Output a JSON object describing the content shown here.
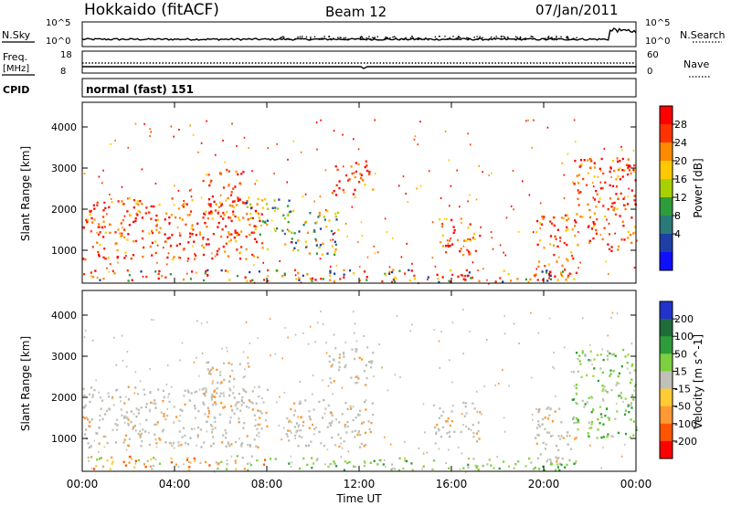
{
  "header": {
    "title": "Hokkaido (fitACF)",
    "beam": "Beam 12",
    "date": "07/Jan/2011"
  },
  "top_panels": {
    "nsky_label": "N.Sky",
    "nsearch_label": "N.Search",
    "freq_label_1": "Freq.",
    "freq_label_2": "[MHz]",
    "nave_label": "Nave",
    "cpid_label": "CPID",
    "cpid_text": "normal (fast) 151",
    "noise_left_ticks": [
      "10^5",
      "10^0"
    ],
    "noise_right_ticks": [
      "10^5",
      "10^0"
    ],
    "freq_ticks": [
      "18",
      "8"
    ],
    "nave_ticks": [
      "60",
      "0"
    ]
  },
  "chart_data": [
    {
      "type": "heatmap",
      "name": "power",
      "ylabel": "Slant Range [km]",
      "ylim": [
        200,
        4600
      ],
      "yticks": [
        1000,
        2000,
        3000,
        4000
      ],
      "colorbar": {
        "label": "Power [dB]",
        "ticks": [
          "28",
          "24",
          "20",
          "16",
          "12",
          "8",
          "4"
        ],
        "colors": [
          "#ff0000",
          "#ff3300",
          "#ff8a00",
          "#ffc800",
          "#a8d000",
          "#2e9c3a",
          "#2a7a7a",
          "#1f3fa6",
          "#1010ff"
        ]
      },
      "blobs": [
        {
          "t0": 0.0,
          "t1": 8.0,
          "r0": 800,
          "r1": 2300,
          "level": "high"
        },
        {
          "t0": 5.2,
          "t1": 7.2,
          "r0": 1800,
          "r1": 3000,
          "level": "high"
        },
        {
          "t0": 7.0,
          "t1": 9.0,
          "r0": 1400,
          "r1": 2300,
          "level": "mid"
        },
        {
          "t0": 9.0,
          "t1": 11.2,
          "r0": 900,
          "r1": 2000,
          "level": "mid"
        },
        {
          "t0": 10.8,
          "t1": 12.6,
          "r0": 2300,
          "r1": 3200,
          "level": "high"
        },
        {
          "t0": 15.4,
          "t1": 17.2,
          "r0": 900,
          "r1": 1800,
          "level": "high"
        },
        {
          "t0": 19.6,
          "t1": 21.4,
          "r0": 300,
          "r1": 1900,
          "level": "high"
        },
        {
          "t0": 21.2,
          "t1": 24.0,
          "r0": 1000,
          "r1": 3300,
          "level": "high"
        },
        {
          "t0": 0.0,
          "t1": 21.0,
          "r0": 250,
          "r1": 550,
          "level": "mixed"
        }
      ]
    },
    {
      "type": "heatmap",
      "name": "velocity",
      "ylabel": "Slant Range [km]",
      "xlabel": "Time UT",
      "ylim": [
        200,
        4600
      ],
      "yticks": [
        1000,
        2000,
        3000,
        4000
      ],
      "xticks": [
        "00:00",
        "04:00",
        "08:00",
        "12:00",
        "16:00",
        "20:00",
        "00:00"
      ],
      "xlim": [
        0,
        24
      ],
      "colorbar": {
        "label": "Velocity [m s^-1]",
        "ticks": [
          "200",
          "100",
          "50",
          "15",
          "-15",
          "-50",
          "-100",
          "-200"
        ],
        "colors": [
          "#2233cc",
          "#1f6b3a",
          "#2e9c3a",
          "#7ccf3e",
          "#c0c0b8",
          "#ffcc33",
          "#ff9933",
          "#ff5500",
          "#ff0000"
        ]
      },
      "blobs": [
        {
          "t0": 0.0,
          "t1": 8.0,
          "r0": 800,
          "r1": 2300,
          "level": "grey"
        },
        {
          "t0": 5.2,
          "t1": 7.2,
          "r0": 1800,
          "r1": 2900,
          "level": "grey"
        },
        {
          "t0": 8.8,
          "t1": 12.6,
          "r0": 800,
          "r1": 2000,
          "level": "grey"
        },
        {
          "t0": 10.6,
          "t1": 12.6,
          "r0": 2300,
          "r1": 3300,
          "level": "grey"
        },
        {
          "t0": 15.2,
          "t1": 17.2,
          "r0": 900,
          "r1": 1900,
          "level": "grey"
        },
        {
          "t0": 19.6,
          "t1": 21.4,
          "r0": 400,
          "r1": 1800,
          "level": "grey"
        },
        {
          "t0": 21.2,
          "t1": 24.0,
          "r0": 1000,
          "r1": 3200,
          "level": "green"
        },
        {
          "t0": 8.0,
          "t1": 21.5,
          "r0": 250,
          "r1": 550,
          "level": "green"
        },
        {
          "t0": 0.0,
          "t1": 8.0,
          "r0": 250,
          "r1": 600,
          "level": "orange"
        }
      ]
    }
  ]
}
